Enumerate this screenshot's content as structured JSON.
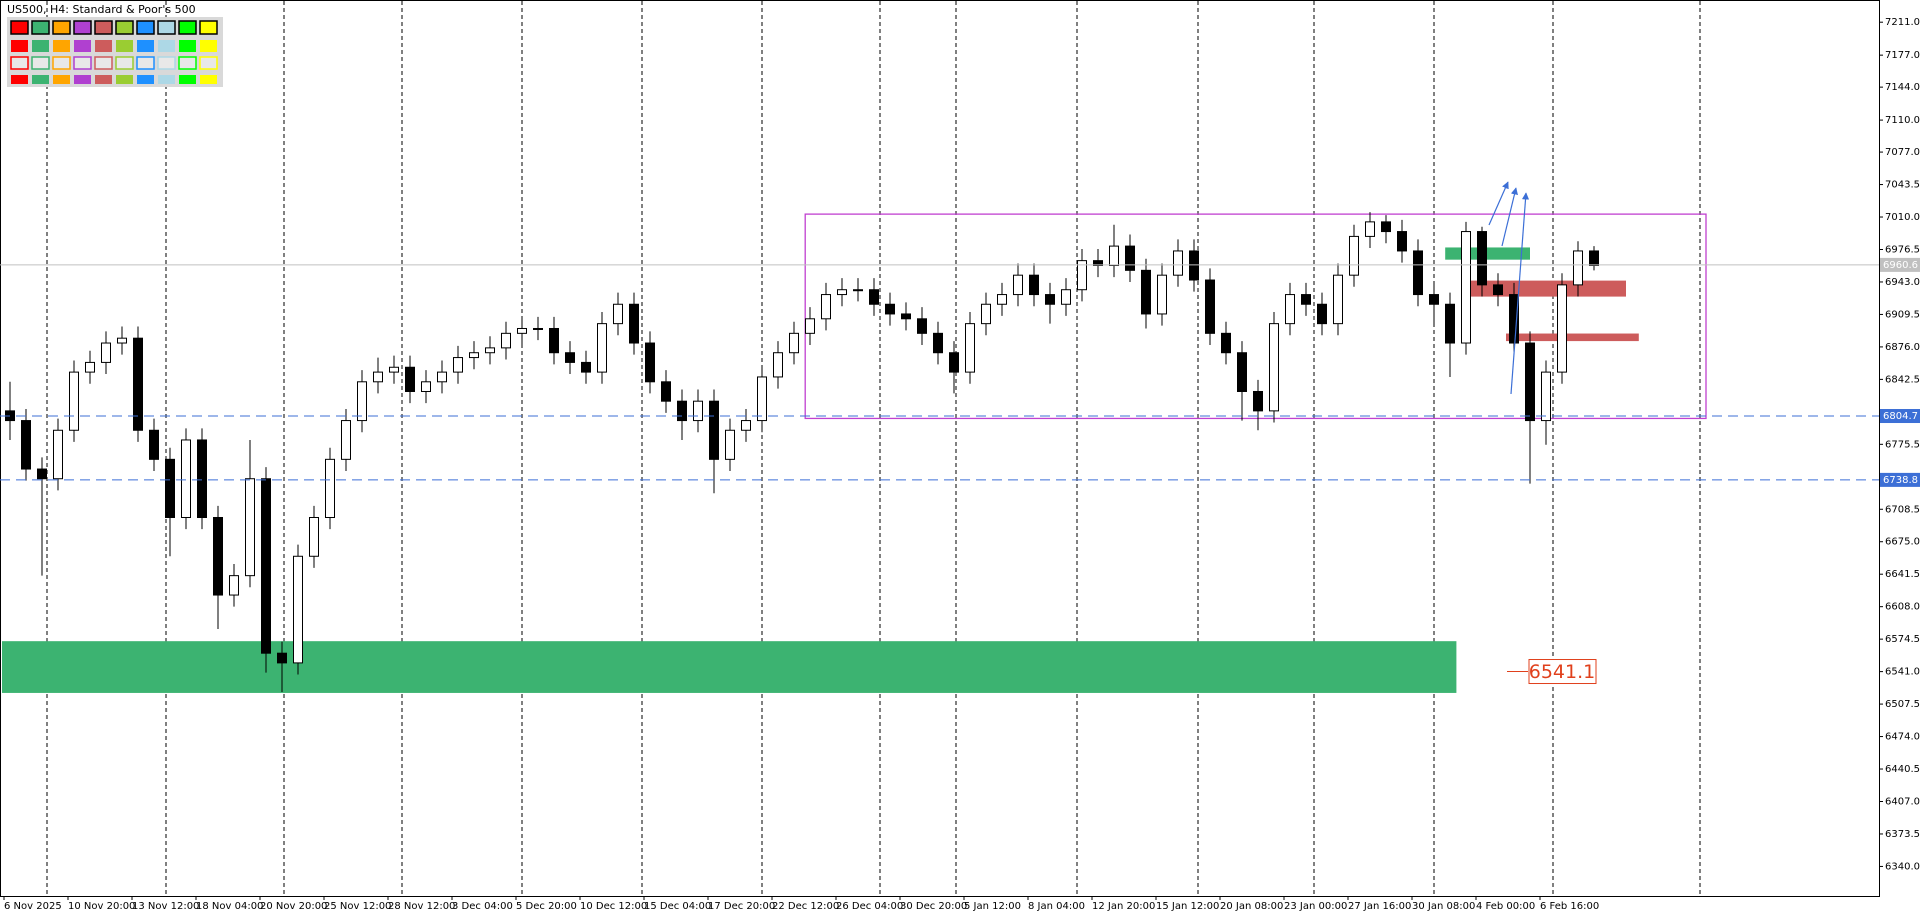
{
  "chart_data": {
    "type": "candlestick",
    "title": "US500, H4:  Standard & Poor's 500",
    "open": [
      6810,
      6800,
      6750,
      6740,
      6790,
      6850,
      6860,
      6880,
      6885,
      6790,
      6760,
      6700,
      6780,
      6700,
      6620,
      6640,
      6740,
      6560,
      6550,
      6660,
      6700,
      6760,
      6800,
      6840,
      6850,
      6855,
      6830,
      6840,
      6850,
      6865,
      6870,
      6875,
      6890,
      6895,
      6895,
      6870,
      6860,
      6850,
      6900,
      6920,
      6880,
      6840,
      6820,
      6800,
      6820,
      6760,
      6790,
      6800,
      6845,
      6870,
      6890,
      6905,
      6930,
      6935,
      6935,
      6920,
      6910,
      6905,
      6890,
      6870,
      6850,
      6900,
      6920,
      6930,
      6950,
      6930,
      6920,
      6935,
      6965,
      6960,
      6980,
      6955,
      6910,
      6950,
      6975,
      6945,
      6890,
      6870,
      6830,
      6810,
      6900,
      6930,
      6920,
      6900,
      6950,
      6990,
      7005,
      6995,
      6975,
      6930,
      6920,
      6880,
      6995,
      6940,
      6930,
      6880,
      6800,
      6850,
      6940,
      6975
    ],
    "high": [
      6840,
      6812,
      6762,
      6802,
      6862,
      6872,
      6892,
      6897,
      6897,
      6802,
      6772,
      6792,
      6792,
      6712,
      6652,
      6780,
      6752,
      6572,
      6672,
      6712,
      6772,
      6812,
      6852,
      6865,
      6867,
      6867,
      6852,
      6862,
      6877,
      6882,
      6887,
      6902,
      6907,
      6907,
      6907,
      6882,
      6872,
      6912,
      6932,
      6932,
      6892,
      6852,
      6832,
      6832,
      6832,
      6802,
      6812,
      6857,
      6882,
      6902,
      6917,
      6942,
      6947,
      6947,
      6947,
      6932,
      6922,
      6917,
      6902,
      6882,
      6912,
      6932,
      6942,
      6962,
      6962,
      6942,
      6947,
      6977,
      6977,
      7002,
      6992,
      6967,
      6962,
      6987,
      6987,
      6957,
      6902,
      6882,
      6842,
      6912,
      6942,
      6942,
      6932,
      6962,
      7002,
      7015,
      7012,
      7007,
      6987,
      6942,
      6932,
      7005,
      7000,
      6952,
      6942,
      6892,
      6862,
      6952,
      6985,
      6980
    ],
    "low": [
      6780,
      6738,
      6640,
      6728,
      6778,
      6838,
      6848,
      6868,
      6778,
      6748,
      6660,
      6688,
      6688,
      6585,
      6608,
      6628,
      6540,
      6520,
      6538,
      6648,
      6688,
      6748,
      6788,
      6828,
      6838,
      6818,
      6818,
      6828,
      6838,
      6853,
      6858,
      6863,
      6878,
      6883,
      6858,
      6848,
      6838,
      6838,
      6888,
      6868,
      6828,
      6808,
      6780,
      6788,
      6725,
      6748,
      6778,
      6788,
      6833,
      6858,
      6878,
      6893,
      6918,
      6923,
      6908,
      6898,
      6893,
      6878,
      6858,
      6828,
      6838,
      6888,
      6908,
      6918,
      6918,
      6900,
      6908,
      6923,
      6948,
      6948,
      6943,
      6895,
      6898,
      6938,
      6933,
      6878,
      6858,
      6800,
      6790,
      6798,
      6888,
      6908,
      6888,
      6888,
      6938,
      6978,
      6983,
      6963,
      6918,
      6900,
      6845,
      6868,
      6928,
      6918,
      6868,
      6735,
      6775,
      6838,
      6928,
      6955
    ],
    "close": [
      6800,
      6750,
      6740,
      6790,
      6850,
      6860,
      6880,
      6885,
      6790,
      6760,
      6700,
      6780,
      6700,
      6620,
      6640,
      6740,
      6560,
      6550,
      6660,
      6700,
      6760,
      6800,
      6840,
      6850,
      6855,
      6830,
      6840,
      6850,
      6865,
      6870,
      6875,
      6890,
      6895,
      6895,
      6870,
      6860,
      6850,
      6900,
      6920,
      6880,
      6840,
      6820,
      6800,
      6820,
      6760,
      6790,
      6800,
      6845,
      6870,
      6890,
      6905,
      6930,
      6935,
      6935,
      6920,
      6910,
      6905,
      6890,
      6870,
      6850,
      6900,
      6920,
      6930,
      6950,
      6930,
      6920,
      6935,
      6965,
      6960,
      6980,
      6955,
      6910,
      6950,
      6975,
      6945,
      6890,
      6870,
      6830,
      6810,
      6900,
      6930,
      6920,
      6900,
      6950,
      6990,
      7005,
      6995,
      6975,
      6930,
      6920,
      6880,
      6995,
      6940,
      6930,
      6880,
      6800,
      6850,
      6940,
      6975,
      6960
    ],
    "xticks": [
      {
        "value": 0,
        "label": "6 Nov 2025"
      },
      {
        "value": 4,
        "label": "10 Nov 20:00"
      },
      {
        "value": 8,
        "label": "13 Nov 12:00"
      },
      {
        "value": 12,
        "label": "18 Nov 04:00"
      },
      {
        "value": 16,
        "label": "20 Nov 20:00"
      },
      {
        "value": 20,
        "label": "25 Nov 12:00"
      },
      {
        "value": 24,
        "label": "28 Nov 12:00"
      },
      {
        "value": 28,
        "label": "3 Dec 04:00"
      },
      {
        "value": 32,
        "label": "5 Dec 20:00"
      },
      {
        "value": 36,
        "label": "10 Dec 12:00"
      },
      {
        "value": 40,
        "label": "15 Dec 04:00"
      },
      {
        "value": 44,
        "label": "17 Dec 20:00"
      },
      {
        "value": 48,
        "label": "22 Dec 12:00"
      },
      {
        "value": 52,
        "label": "26 Dec 04:00"
      },
      {
        "value": 56,
        "label": "30 Dec 20:00"
      },
      {
        "value": 60,
        "label": "5 Jan 12:00"
      },
      {
        "value": 64,
        "label": "8 Jan 04:00"
      },
      {
        "value": 68,
        "label": "12 Jan 20:00"
      },
      {
        "value": 72,
        "label": "15 Jan 12:00"
      },
      {
        "value": 76,
        "label": "20 Jan 08:00"
      },
      {
        "value": 80,
        "label": "23 Jan 00:00"
      },
      {
        "value": 84,
        "label": "27 Jan 16:00"
      },
      {
        "value": 88,
        "label": "30 Jan 08:00"
      },
      {
        "value": 92,
        "label": "4 Feb 00:00"
      },
      {
        "value": 96,
        "label": "6 Feb 16:00"
      }
    ],
    "ylim": [
      6309.5,
      7233.9
    ],
    "yticks": [
      {
        "value": 7211,
        "label": "7211.0"
      },
      {
        "value": 7177,
        "label": "7177.0"
      },
      {
        "value": 7144,
        "label": "7144.0"
      },
      {
        "value": 7110,
        "label": "7110.0"
      },
      {
        "value": 7077,
        "label": "7077.0"
      },
      7043.5,
      {
        "value": 7010,
        "label": "7010.0"
      },
      6976.5,
      {
        "value": 6943,
        "label": "6943.0"
      },
      6909.5,
      {
        "value": 6876,
        "label": "6876.0"
      },
      6842.5,
      6775.5,
      6708.5,
      {
        "value": 6675,
        "label": "6675.0"
      },
      6641.5,
      {
        "value": 6608,
        "label": "6608.0"
      },
      6574.5,
      {
        "value": 6541,
        "label": "6541.0"
      },
      6507.5,
      {
        "value": 6474,
        "label": "6474.0"
      },
      6440.5,
      {
        "value": 6407,
        "label": "6407.0"
      },
      6373.5,
      {
        "value": 6340,
        "label": "6340.0"
      }
    ],
    "grid": true,
    "up_color": "#ffffff",
    "down_color": "#000000",
    "hlines": [
      {
        "value": 6804.7,
        "color": "#3c6fd6",
        "dashed": true
      },
      {
        "value": 6738.8,
        "color": "#3c6fd6",
        "dashed": true
      },
      {
        "value": 6960.6,
        "color": "#c0c0c0",
        "dashed": false
      }
    ],
    "zones": [
      {
        "x0": -0.5,
        "x1": 90.4,
        "top": 6572.4,
        "bottom": 6519,
        "color": "#3cb371",
        "filled": true
      },
      {
        "x0": 49.7,
        "x1": 106,
        "top": 7013,
        "bottom": 6802.2,
        "color": "#c040d0",
        "filled": false
      },
      {
        "x0": 89.7,
        "x1": 95,
        "top": 6978.6,
        "bottom": 6966,
        "color": "#3cb371",
        "filled": true
      },
      {
        "x0": 91.2,
        "x1": 101,
        "top": 6944.4,
        "bottom": 6927.9,
        "color": "#cd5c5c",
        "filled": true
      },
      {
        "x0": 93.5,
        "x1": 101.8,
        "top": 6889.8,
        "bottom": 6882,
        "color": "#cd5c5c",
        "filled": true
      }
    ],
    "price_label": {
      "value": 6541.1,
      "color": "#e0401c"
    }
  }
}
